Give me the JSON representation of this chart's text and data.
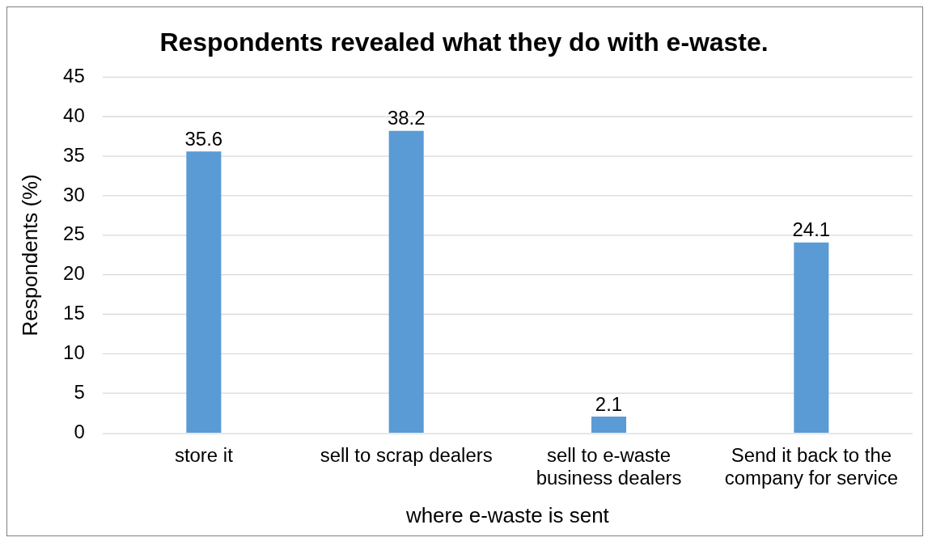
{
  "chart_data": {
    "type": "bar",
    "title": "Respondents revealed what they do with e-waste.",
    "xlabel": "where e-waste is sent",
    "ylabel": "Respondents (%)",
    "categories": [
      "store it",
      "sell to scrap dealers",
      "sell to e-waste business dealers",
      "Send it back to the company for service"
    ],
    "values": [
      35.6,
      38.2,
      2.1,
      24.1
    ],
    "color": "#5b9bd5",
    "ylim": [
      0,
      45
    ],
    "yticks": [
      0,
      5,
      10,
      15,
      20,
      25,
      30,
      35,
      40,
      45
    ],
    "grid": "y",
    "data_labels": true
  }
}
